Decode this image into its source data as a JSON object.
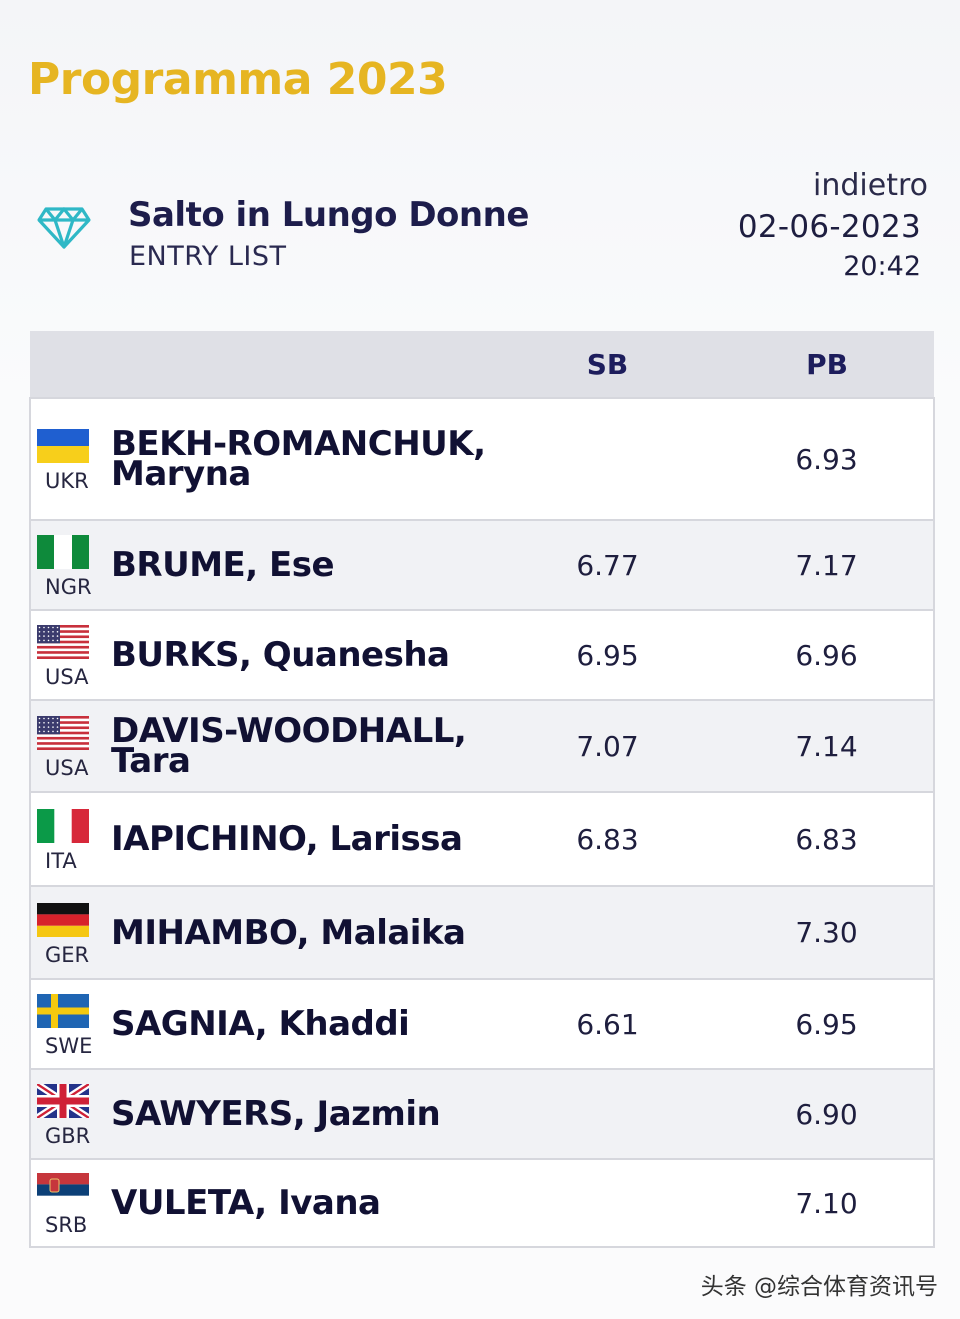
{
  "page": {
    "title": "Programma 2023"
  },
  "event": {
    "name": "Salto in Lungo Donne",
    "subtitle": "ENTRY LIST",
    "back_label": "indietro",
    "date": "02-06-2023",
    "time": "20:42",
    "logo_icon": "diamond-icon",
    "logo_color": "#2fb8c6"
  },
  "table": {
    "columns": {
      "flag": "",
      "name": "",
      "sb": "SB",
      "pb": "PB"
    },
    "rows": [
      {
        "country": "UKR",
        "flag": "ukr",
        "name": "BEKH-ROMANCHUK, Maryna",
        "sb": "",
        "pb": "6.93"
      },
      {
        "country": "NGR",
        "flag": "ngr",
        "name": "BRUME, Ese",
        "sb": "6.77",
        "pb": "7.17"
      },
      {
        "country": "USA",
        "flag": "usa",
        "name": "BURKS, Quanesha",
        "sb": "6.95",
        "pb": "6.96"
      },
      {
        "country": "USA",
        "flag": "usa",
        "name": "DAVIS-WOODHALL, Tara",
        "sb": "7.07",
        "pb": "7.14"
      },
      {
        "country": "ITA",
        "flag": "ita",
        "name": "IAPICHINO, Larissa",
        "sb": "6.83",
        "pb": "6.83"
      },
      {
        "country": "GER",
        "flag": "ger",
        "name": "MIHAMBO, Malaika",
        "sb": "",
        "pb": "7.30"
      },
      {
        "country": "SWE",
        "flag": "swe",
        "name": "SAGNIA, Khaddi",
        "sb": "6.61",
        "pb": "6.95"
      },
      {
        "country": "GBR",
        "flag": "gbr",
        "name": "SAWYERS, Jazmin",
        "sb": "",
        "pb": "6.90"
      },
      {
        "country": "SRB",
        "flag": "srb",
        "name": "VULETA, Ivana",
        "sb": "",
        "pb": "7.10"
      }
    ]
  },
  "watermark": "头条 @综合体育资讯号",
  "colors": {
    "title_accent": "#e6b522",
    "header_bg": "#dfe0e6",
    "header_text": "#1d1d5c"
  }
}
